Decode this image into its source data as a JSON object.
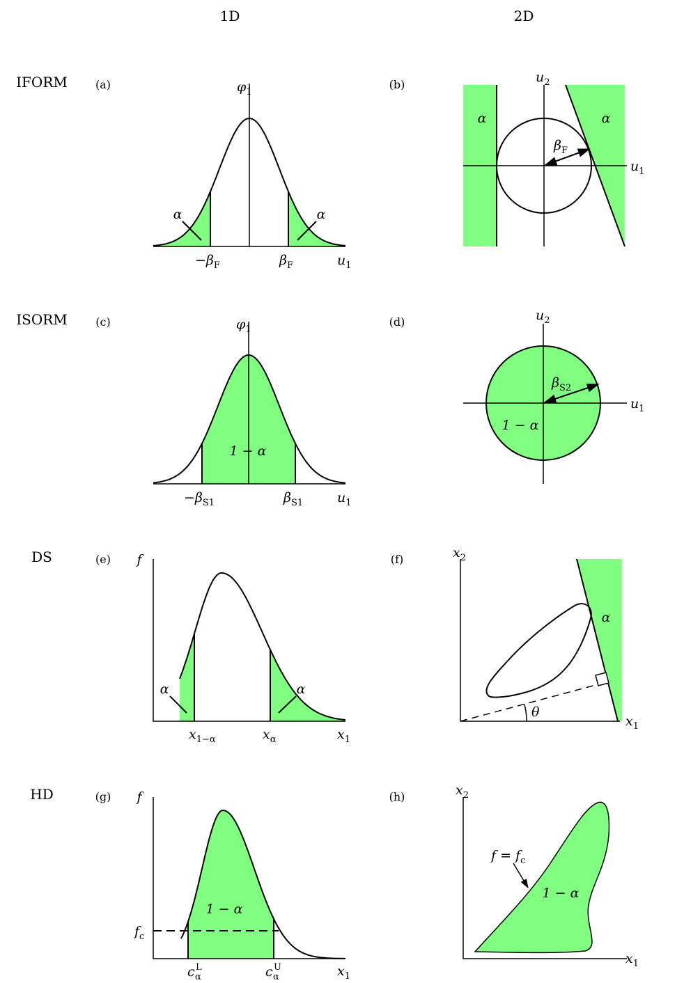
{
  "columns": {
    "col1": "1D",
    "col2": "2D"
  },
  "rows": [
    {
      "label": "IFORM",
      "left_panel": "(a)",
      "right_panel": "(b)"
    },
    {
      "label": "ISORM",
      "left_panel": "(c)",
      "right_panel": "(d)"
    },
    {
      "label": "DS",
      "left_panel": "(e)",
      "right_panel": "(f)"
    },
    {
      "label": "HD",
      "left_panel": "(g)",
      "right_panel": "(h)"
    }
  ],
  "symbols": {
    "alpha": "α",
    "one_minus_alpha": "1 − α",
    "phi": "φ",
    "u": "u",
    "x": "x",
    "f": "f",
    "minus_beta": "−β",
    "beta": "β",
    "theta": "θ",
    "c": "c",
    "f_equals": "f = f",
    "sub_1": "1",
    "sub_2": "2",
    "sub_F": "F",
    "sub_S1": "S1",
    "sub_S2": "S2",
    "sub_c": "c",
    "sub_alpha": "α",
    "sub_1_minus_alpha": "1−α",
    "sup_L": "L",
    "sup_U": "U"
  },
  "colors": {
    "fill": "#80ff80",
    "line": "#000000"
  }
}
